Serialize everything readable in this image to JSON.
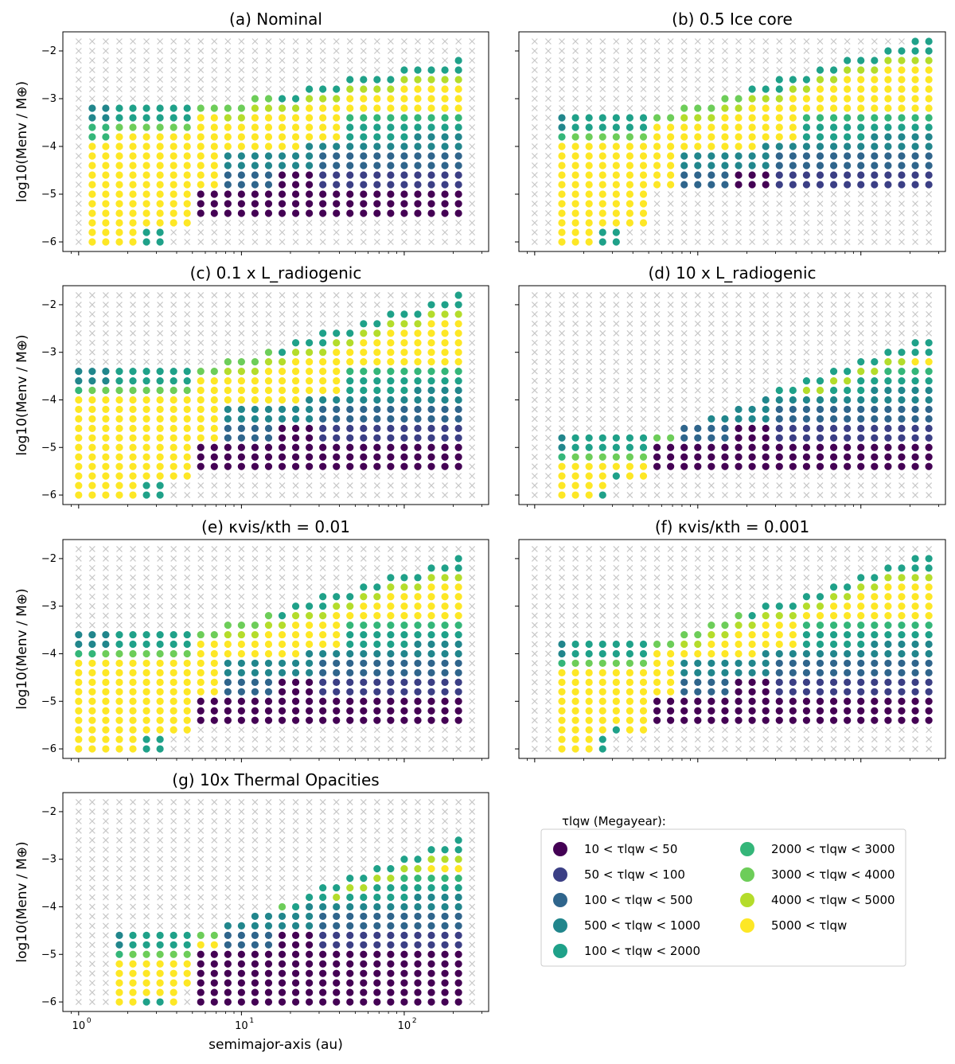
{
  "chart_data": {
    "type": "scatter",
    "ylabel": "log10(Menv / M⊕)",
    "xlabel": "semimajor-axis (au)",
    "xscale": "log",
    "xlim": [
      0.8,
      330
    ],
    "ylim": [
      -6.2,
      -1.6
    ],
    "yticks": [
      -2,
      -3,
      -4,
      -5,
      -6
    ],
    "xticks": [
      "10^0",
      "10^1",
      "10^2"
    ],
    "not_computed_marker": "×",
    "not_computed_color": "#c8c8c8",
    "categories": [
      {
        "label": "10 < τlqw < 50",
        "color": "#440154"
      },
      {
        "label": "50 < τlqw < 100",
        "color": "#3b3f85"
      },
      {
        "label": "100 < τlqw < 500",
        "color": "#2f658c"
      },
      {
        "label": "500 < τlqw < 1000",
        "color": "#21868c"
      },
      {
        "label": "100 < τlqw < 2000",
        "color": "#1fa189"
      },
      {
        "label": "2000 < τlqw < 3000",
        "color": "#34b679"
      },
      {
        "label": "3000 < τlqw < 4000",
        "color": "#6dcd59"
      },
      {
        "label": "4000 < τlqw < 5000",
        "color": "#b4dc2b"
      },
      {
        "label": "5000 < τlqw",
        "color": "#fde725"
      }
    ],
    "panels": [
      {
        "id": "a",
        "title": "(a) Nominal",
        "region": {
          "x1": 1.2,
          "ymin_left": -6.0,
          "tongue_end": 3.2,
          "ymax_left": -3.2,
          "ymin_right": -5.4,
          "ymax_right": -2.2,
          "xmax": 250
        }
      },
      {
        "id": "b",
        "title": "(b) 0.5 Ice core",
        "region": {
          "x1": 1.3,
          "ymin_left": -6.0,
          "tongue_end": 3.2,
          "ymax_left": -3.4,
          "ymin_right": -4.8,
          "ymax_right": -1.8,
          "xmax": 320
        }
      },
      {
        "id": "c",
        "title": "(c) 0.1 x L_radiogenic",
        "region": {
          "x1": 0.9,
          "ymin_left": -6.0,
          "tongue_end": 3.5,
          "ymax_left": -3.4,
          "ymin_right": -5.4,
          "ymax_right": -1.8,
          "xmax": 250
        }
      },
      {
        "id": "d",
        "title": "(d) 10 x L_radiogenic",
        "region": {
          "x1": 1.3,
          "ymin_left": -6.0,
          "tongue_end": 3.0,
          "ymax_left": -4.8,
          "ymin_right": -5.4,
          "ymax_right": -2.8,
          "xmax": 320
        }
      },
      {
        "id": "e",
        "title": "(e) κvis/κth = 0.01",
        "region": {
          "x1": 1.0,
          "ymin_left": -6.0,
          "tongue_end": 3.2,
          "ymax_left": -3.6,
          "ymin_right": -5.4,
          "ymax_right": -2.0,
          "xmax": 250
        }
      },
      {
        "id": "f",
        "title": "(f) κvis/κth = 0.001",
        "region": {
          "x1": 1.3,
          "ymin_left": -6.0,
          "tongue_end": 3.0,
          "ymax_left": -3.8,
          "ymin_right": -5.4,
          "ymax_right": -2.0,
          "xmax": 320
        }
      },
      {
        "id": "g",
        "title": "(g) 10x Thermal Opacities",
        "region": {
          "x1": 1.7,
          "ymin_left": -6.0,
          "tongue_end": 4.0,
          "ymax_left": -4.6,
          "ymin_right": -6.0,
          "ymax_right": -2.6,
          "xmax": 250
        }
      }
    ],
    "legend": {
      "title": "τlqw (Megayear):",
      "location": "lower-right"
    }
  }
}
